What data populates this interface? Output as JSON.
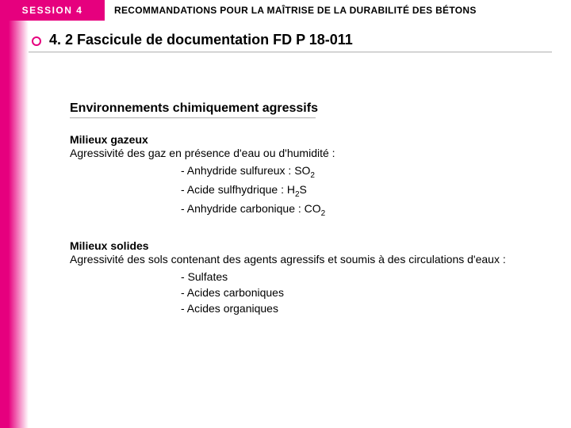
{
  "header": {
    "session": "SESSION 4",
    "title": "RECOMMANDATIONS POUR LA MAÎTRISE DE LA DURABILITÉ DES BÉTONS"
  },
  "section_title": "4. 2 Fascicule de documentation FD P 18-011",
  "subheading": "Environnements chimiquement agressifs",
  "group1": {
    "title": "Milieux gazeux",
    "intro": "Agressivité des gaz en présence d'eau ou d'humidité :",
    "items": [
      {
        "pre": "Anhydride sulfureux : SO",
        "sub": "2"
      },
      {
        "pre": "Acide sulfhydrique : H",
        "sub": "2",
        "post": "S"
      },
      {
        "pre": "Anhydride carbonique : CO",
        "sub": "2"
      }
    ]
  },
  "group2": {
    "title": "Milieux solides",
    "intro": "Agressivité des sols contenant des agents agressifs et soumis à des circulations d'eaux :",
    "items": [
      {
        "pre": "Sulfates"
      },
      {
        "pre": "Acides carboniques"
      },
      {
        "pre": "Acides organiques"
      }
    ]
  },
  "colors": {
    "accent": "#e6007e",
    "text": "#000000",
    "bg": "#ffffff"
  }
}
